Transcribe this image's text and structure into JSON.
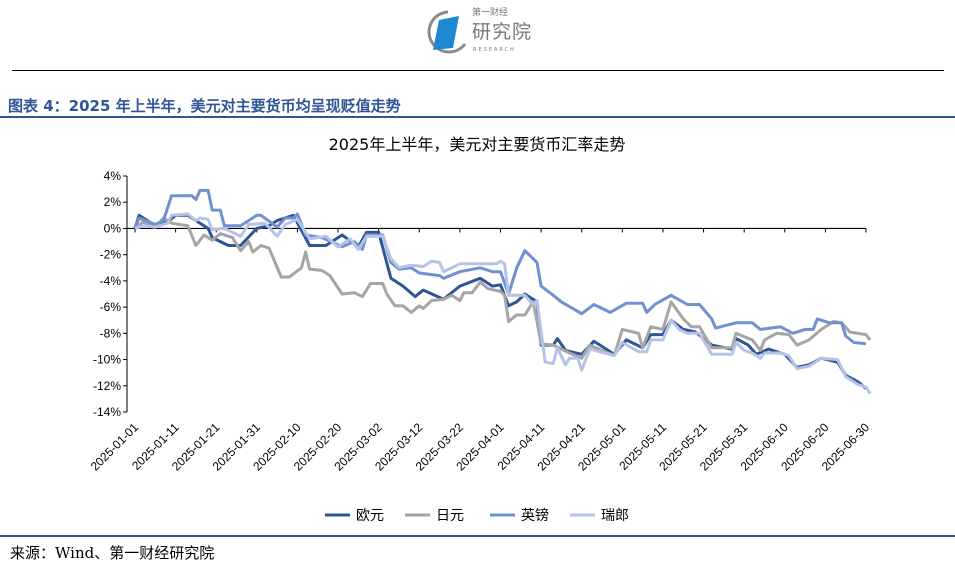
{
  "header": {
    "logo_top": "第一财经",
    "logo_main": "研究院",
    "logo_sub": "RESEARCH",
    "figure_title": "图表 4：2025 年上半年，美元对主要货币均呈现贬值走势"
  },
  "footer": {
    "source": "来源：Wind、第一财经研究院"
  },
  "chart_data": {
    "type": "line",
    "title": "2025年上半年，美元对主要货币汇率走势",
    "xlabel": "",
    "ylabel": "",
    "x_unit": "days since 2025-01-01",
    "xlim": [
      0,
      180
    ],
    "ylim": [
      -14,
      4
    ],
    "y_ticks": [
      4,
      2,
      0,
      -2,
      -4,
      -6,
      -8,
      -10,
      -12,
      -14
    ],
    "y_tick_labels": [
      "4%",
      "2%",
      "0%",
      "-2%",
      "-4%",
      "-6%",
      "-8%",
      "-10%",
      "-12%",
      "-14%"
    ],
    "x_ticks": [
      0,
      10,
      20,
      30,
      40,
      50,
      60,
      70,
      80,
      90,
      100,
      110,
      120,
      130,
      140,
      150,
      160,
      170,
      180
    ],
    "x_tick_labels": [
      "2025-01-01",
      "2025-01-11",
      "2025-01-21",
      "2025-01-31",
      "2025-02-10",
      "2025-02-20",
      "2025-03-02",
      "2025-03-12",
      "2025-03-22",
      "2025-04-01",
      "2025-04-11",
      "2025-04-21",
      "2025-05-01",
      "2025-05-11",
      "2025-05-21",
      "2025-05-31",
      "2025-06-10",
      "2025-06-20",
      "2025-06-30"
    ],
    "grid": false,
    "legend_position": "bottom",
    "series": [
      {
        "name": "欧元",
        "color": "#2f5597",
        "points": [
          [
            0,
            0
          ],
          [
            1,
            1.0
          ],
          [
            5,
            0.2
          ],
          [
            8,
            0.5
          ],
          [
            10,
            1.0
          ],
          [
            13,
            1.0
          ],
          [
            15,
            0.6
          ],
          [
            18,
            0.0
          ],
          [
            19,
            -0.7
          ],
          [
            23,
            -1.3
          ],
          [
            26,
            -1.3
          ],
          [
            30,
            0
          ],
          [
            33,
            0.2
          ],
          [
            35,
            0.6
          ],
          [
            39,
            1.0
          ],
          [
            43,
            -1.3
          ],
          [
            47,
            -1.3
          ],
          [
            51,
            -0.5
          ],
          [
            55,
            -1.4
          ],
          [
            57,
            -0.3
          ],
          [
            60,
            -0.3
          ],
          [
            63,
            -3.8
          ],
          [
            66,
            -4.4
          ],
          [
            69,
            -5.2
          ],
          [
            71,
            -4.7
          ],
          [
            76,
            -5.4
          ],
          [
            80,
            -4.4
          ],
          [
            85,
            -3.8
          ],
          [
            88,
            -4.4
          ],
          [
            90,
            -4.3
          ],
          [
            92,
            -5.9
          ],
          [
            94,
            -5.6
          ],
          [
            96,
            -5.0
          ],
          [
            99,
            -5.6
          ],
          [
            100,
            -8.9
          ],
          [
            103,
            -8.9
          ],
          [
            104,
            -8.4
          ],
          [
            106,
            -9.3
          ],
          [
            110,
            -9.6
          ],
          [
            113,
            -8.6
          ],
          [
            118,
            -9.6
          ],
          [
            121,
            -8.5
          ],
          [
            125,
            -9.1
          ],
          [
            127,
            -8.1
          ],
          [
            130,
            -8.1
          ],
          [
            132,
            -7.0
          ],
          [
            135,
            -7.7
          ],
          [
            138,
            -7.9
          ],
          [
            142,
            -8.9
          ],
          [
            147,
            -9.2
          ],
          [
            148,
            -8.4
          ],
          [
            151,
            -8.9
          ],
          [
            153,
            -9.6
          ],
          [
            156,
            -9.2
          ],
          [
            160,
            -9.6
          ],
          [
            163,
            -10.6
          ],
          [
            166,
            -10.4
          ],
          [
            169,
            -9.9
          ],
          [
            173,
            -10.2
          ],
          [
            175,
            -11.2
          ],
          [
            178,
            -11.7
          ],
          [
            180,
            -12.2
          ]
        ]
      },
      {
        "name": "日元",
        "color": "#a5a5a5",
        "points": [
          [
            0,
            0
          ],
          [
            2,
            0.5
          ],
          [
            5,
            0.1
          ],
          [
            7,
            0.8
          ],
          [
            9,
            0.4
          ],
          [
            13,
            0.2
          ],
          [
            15,
            -1.3
          ],
          [
            17,
            -0.5
          ],
          [
            19,
            -0.9
          ],
          [
            21,
            -0.4
          ],
          [
            24,
            -0.7
          ],
          [
            26,
            -1.7
          ],
          [
            28,
            -1.0
          ],
          [
            29,
            -1.8
          ],
          [
            31,
            -1.3
          ],
          [
            33,
            -1.5
          ],
          [
            36,
            -3.7
          ],
          [
            38,
            -3.7
          ],
          [
            41,
            -3.0
          ],
          [
            42,
            -1.8
          ],
          [
            43,
            -3.1
          ],
          [
            46,
            -3.2
          ],
          [
            48,
            -3.6
          ],
          [
            51,
            -5.0
          ],
          [
            54,
            -4.9
          ],
          [
            56,
            -5.2
          ],
          [
            58,
            -4.2
          ],
          [
            61,
            -4.2
          ],
          [
            62,
            -5.0
          ],
          [
            64,
            -5.9
          ],
          [
            66,
            -5.9
          ],
          [
            68,
            -6.4
          ],
          [
            70,
            -5.9
          ],
          [
            71,
            -6.1
          ],
          [
            73,
            -5.5
          ],
          [
            76,
            -5.4
          ],
          [
            78,
            -5.1
          ],
          [
            80,
            -5.5
          ],
          [
            81,
            -4.9
          ],
          [
            83,
            -4.9
          ],
          [
            85,
            -4.1
          ],
          [
            87,
            -4.6
          ],
          [
            90,
            -4.8
          ],
          [
            91,
            -5.1
          ],
          [
            92,
            -7.1
          ],
          [
            94,
            -6.6
          ],
          [
            96,
            -6.6
          ],
          [
            98,
            -5.6
          ],
          [
            99,
            -7.1
          ],
          [
            100,
            -8.8
          ],
          [
            103,
            -8.9
          ],
          [
            107,
            -9.5
          ],
          [
            110,
            -9.9
          ],
          [
            112,
            -8.9
          ],
          [
            118,
            -9.7
          ],
          [
            120,
            -7.7
          ],
          [
            124,
            -8.0
          ],
          [
            125,
            -9.1
          ],
          [
            127,
            -7.5
          ],
          [
            130,
            -7.7
          ],
          [
            132,
            -5.6
          ],
          [
            135,
            -6.9
          ],
          [
            137,
            -7.5
          ],
          [
            139,
            -7.5
          ],
          [
            142,
            -9.1
          ],
          [
            147,
            -9.1
          ],
          [
            148,
            -8.0
          ],
          [
            152,
            -8.5
          ],
          [
            154,
            -9.3
          ],
          [
            155,
            -8.5
          ],
          [
            158,
            -8.0
          ],
          [
            161,
            -8.1
          ],
          [
            163,
            -8.9
          ],
          [
            166,
            -8.5
          ],
          [
            169,
            -7.7
          ],
          [
            172,
            -7.1
          ],
          [
            174,
            -7.2
          ],
          [
            176,
            -7.9
          ],
          [
            180,
            -8.1
          ],
          [
            181,
            -8.5
          ]
        ]
      },
      {
        "name": "英镑",
        "color": "#7090d0",
        "points": [
          [
            0,
            0
          ],
          [
            1,
            0.8
          ],
          [
            5,
            0.3
          ],
          [
            7,
            0.6
          ],
          [
            9,
            2.5
          ],
          [
            14,
            2.5
          ],
          [
            15,
            2.2
          ],
          [
            16,
            2.9
          ],
          [
            18,
            2.9
          ],
          [
            19,
            1.4
          ],
          [
            21,
            1.4
          ],
          [
            22,
            0.2
          ],
          [
            26,
            0.2
          ],
          [
            28,
            0.6
          ],
          [
            30,
            1.0
          ],
          [
            31,
            1.0
          ],
          [
            35,
            0.1
          ],
          [
            37,
            0.8
          ],
          [
            39,
            0.8
          ],
          [
            40,
            1.1
          ],
          [
            42,
            -0.5
          ],
          [
            46,
            -0.7
          ],
          [
            49,
            -1.1
          ],
          [
            51,
            -1.4
          ],
          [
            54,
            -1.0
          ],
          [
            56,
            -1.6
          ],
          [
            57,
            -0.5
          ],
          [
            61,
            -0.5
          ],
          [
            63,
            -2.6
          ],
          [
            65,
            -3.1
          ],
          [
            68,
            -3.0
          ],
          [
            70,
            -3.4
          ],
          [
            75,
            -3.6
          ],
          [
            76,
            -3.8
          ],
          [
            80,
            -3.3
          ],
          [
            85,
            -3.0
          ],
          [
            88,
            -3.3
          ],
          [
            90,
            -3.3
          ],
          [
            92,
            -5.0
          ],
          [
            94,
            -3.0
          ],
          [
            96,
            -1.7
          ],
          [
            99,
            -2.6
          ],
          [
            100,
            -4.4
          ],
          [
            103,
            -5.1
          ],
          [
            105,
            -5.6
          ],
          [
            110,
            -6.5
          ],
          [
            113,
            -5.8
          ],
          [
            117,
            -6.4
          ],
          [
            121,
            -5.7
          ],
          [
            125,
            -5.7
          ],
          [
            126,
            -6.4
          ],
          [
            128,
            -5.8
          ],
          [
            132,
            -5.1
          ],
          [
            136,
            -5.8
          ],
          [
            139,
            -5.8
          ],
          [
            142,
            -6.9
          ],
          [
            143,
            -7.6
          ],
          [
            148,
            -7.2
          ],
          [
            152,
            -7.2
          ],
          [
            154,
            -7.7
          ],
          [
            159,
            -7.5
          ],
          [
            162,
            -8.0
          ],
          [
            165,
            -7.7
          ],
          [
            167,
            -7.7
          ],
          [
            168,
            -6.9
          ],
          [
            171,
            -7.2
          ],
          [
            174,
            -7.2
          ],
          [
            175,
            -8.2
          ],
          [
            177,
            -8.7
          ],
          [
            180,
            -8.8
          ]
        ]
      },
      {
        "name": "瑞郎",
        "color": "#b4c3e8",
        "points": [
          [
            0,
            0
          ],
          [
            2,
            0.2
          ],
          [
            5,
            0.1
          ],
          [
            8,
            0.4
          ],
          [
            9,
            1.0
          ],
          [
            13,
            1.1
          ],
          [
            15,
            0.6
          ],
          [
            16,
            0.8
          ],
          [
            18,
            0.7
          ],
          [
            19,
            -0.1
          ],
          [
            22,
            0.0
          ],
          [
            26,
            -0.6
          ],
          [
            28,
            0.3
          ],
          [
            32,
            0.4
          ],
          [
            35,
            -0.6
          ],
          [
            37,
            0.3
          ],
          [
            40,
            0.7
          ],
          [
            43,
            -0.8
          ],
          [
            47,
            -0.6
          ],
          [
            50,
            -1.4
          ],
          [
            53,
            -0.8
          ],
          [
            55,
            -1.6
          ],
          [
            57,
            -0.6
          ],
          [
            61,
            -0.6
          ],
          [
            63,
            -2.3
          ],
          [
            65,
            -3.0
          ],
          [
            68,
            -2.8
          ],
          [
            71,
            -2.9
          ],
          [
            73,
            -2.5
          ],
          [
            75,
            -2.6
          ],
          [
            76,
            -3.3
          ],
          [
            80,
            -2.7
          ],
          [
            86,
            -2.7
          ],
          [
            89,
            -2.7
          ],
          [
            90,
            -2.5
          ],
          [
            91,
            -2.7
          ],
          [
            92,
            -5.1
          ],
          [
            96,
            -5.1
          ],
          [
            98,
            -5.8
          ],
          [
            99,
            -5.5
          ],
          [
            101,
            -10.2
          ],
          [
            103,
            -10.3
          ],
          [
            104,
            -9.1
          ],
          [
            106,
            -10.4
          ],
          [
            107,
            -9.9
          ],
          [
            109,
            -9.9
          ],
          [
            110,
            -10.8
          ],
          [
            112,
            -9.2
          ],
          [
            118,
            -9.7
          ],
          [
            120,
            -8.7
          ],
          [
            124,
            -9.4
          ],
          [
            126,
            -9.4
          ],
          [
            127,
            -8.5
          ],
          [
            130,
            -8.5
          ],
          [
            132,
            -7.0
          ],
          [
            134,
            -7.7
          ],
          [
            136,
            -8.0
          ],
          [
            139,
            -8.0
          ],
          [
            142,
            -9.6
          ],
          [
            147,
            -9.6
          ],
          [
            148,
            -8.7
          ],
          [
            150,
            -9.3
          ],
          [
            152,
            -9.5
          ],
          [
            154,
            -9.9
          ],
          [
            155,
            -9.5
          ],
          [
            159,
            -9.5
          ],
          [
            161,
            -9.7
          ],
          [
            163,
            -10.7
          ],
          [
            166,
            -10.5
          ],
          [
            169,
            -9.9
          ],
          [
            173,
            -10.0
          ],
          [
            175,
            -11.3
          ],
          [
            178,
            -11.9
          ],
          [
            180,
            -12.1
          ],
          [
            181,
            -12.6
          ]
        ]
      }
    ]
  }
}
